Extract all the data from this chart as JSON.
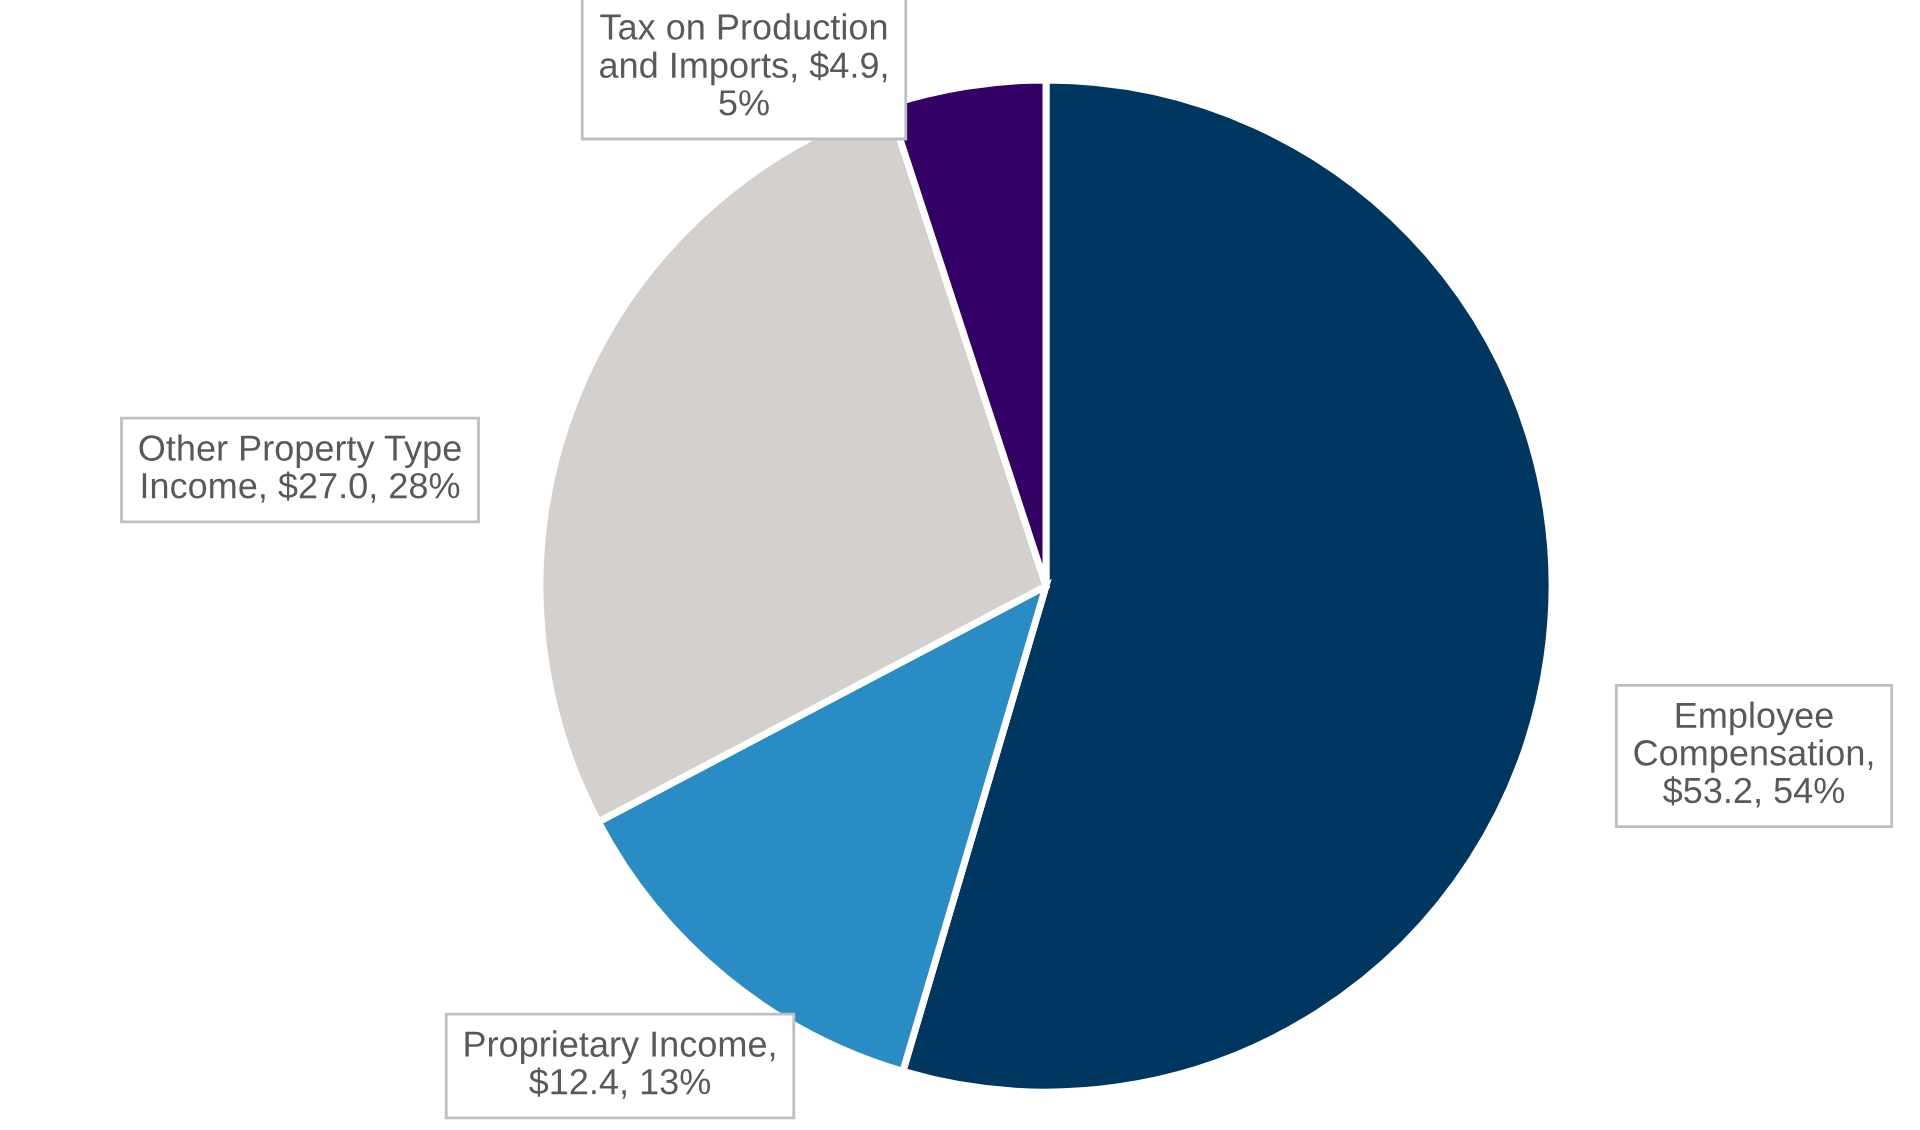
{
  "chart_data": {
    "type": "pie",
    "categories": [
      "Employee Compensation, $53.2, 54%",
      "Proprietary Income, $12.4, 13%",
      "Other Property Type Income, $27.0, 28%",
      "Tax on Production and Imports, $4.9, 5%"
    ],
    "values": [
      53.2,
      12.4,
      27.0,
      4.9
    ],
    "colors": [
      "#003761",
      "#2a8cc4",
      "#d3d0cd",
      "#330066"
    ],
    "legend": false
  }
}
